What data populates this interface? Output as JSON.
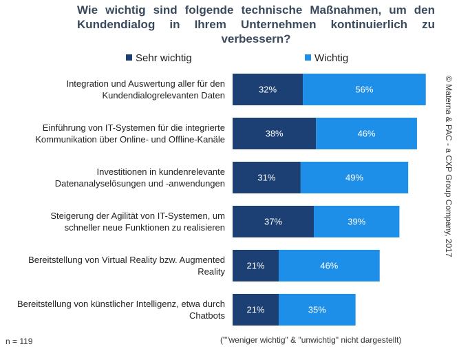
{
  "chart_data": {
    "type": "stacked-barh",
    "title": "Wie wichtig sind folgende technische Maßnahmen, um den Kundendialog in Ihrem Unternehmen kontinuierlich zu verbessern?",
    "categories": [
      "Integration und Auswertung aller für den Kundendialogrelevanten Daten",
      "Einführung von IT-Systemen für die integrierte Kommunikation über Online- und Offline-Kanäle",
      "Investitionen in kundenrelevante Datenanalyselösungen und -anwendungen",
      "Steigerung der Agilität von IT-Systemen, um schneller neue Funktionen zu realisieren",
      "Bereitstellung von Virtual Reality bzw. Augmented Reality",
      "Bereitstellung von künstlicher Intelligenz, etwa durch Chatbots"
    ],
    "series": [
      {
        "name": "Sehr wichtig",
        "color": "#1c3f74",
        "values": [
          32,
          38,
          31,
          37,
          21,
          21
        ],
        "value_labels": [
          "32%",
          "38%",
          "31%",
          "37%",
          "21%",
          "21%"
        ]
      },
      {
        "name": "Wichtig",
        "color": "#1e8fe8",
        "values": [
          56,
          46,
          49,
          39,
          46,
          35
        ],
        "value_labels": [
          "56%",
          "46%",
          "49%",
          "39%",
          "46%",
          "35%"
        ]
      }
    ],
    "xlim": [
      0,
      100
    ],
    "footnote": "n = 119",
    "note": "(\"\"weniger wichtig\" & \"unwichtig\" nicht dargestellt)",
    "source": "© Materna & PAC - a CXP Group Company, 2017"
  }
}
